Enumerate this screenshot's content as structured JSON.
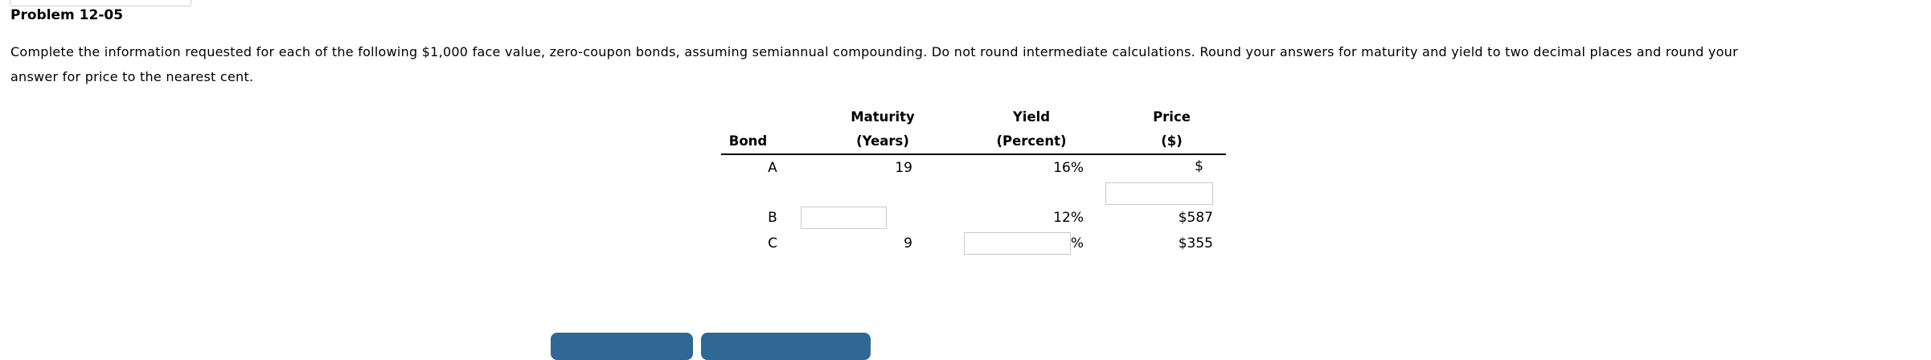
{
  "page": {
    "title": "Problem 12-05",
    "instructions_line1": "Complete the information requested for each of the following $1,000 face value, zero-coupon bonds, assuming semiannual compounding. Do not round intermediate calculations. Round your answers for maturity and yield to two decimal places and round your",
    "instructions_line2": "answer for price to the nearest cent."
  },
  "table": {
    "headers": {
      "bond": "Bond",
      "maturity1": "Maturity",
      "maturity2": "(Years)",
      "yield1": "Yield",
      "yield2": "(Percent)",
      "price1": "Price",
      "price2": "($)"
    },
    "rows": [
      {
        "bond": "A",
        "maturity": "19",
        "yield": "16%",
        "price_prefix": "$",
        "price_input_value": ""
      },
      {
        "bond": "B",
        "maturity_input_value": "",
        "yield": "12%",
        "price": "$587"
      },
      {
        "bond": "C",
        "maturity": "9",
        "yield_input_value": "",
        "yield_suffix": "%",
        "price": "$355"
      }
    ]
  },
  "colors": {
    "accent_blue": "#2f6795",
    "input_border": "#c9c9c9",
    "rule_black": "#000000",
    "tab_border": "#cccccc"
  }
}
